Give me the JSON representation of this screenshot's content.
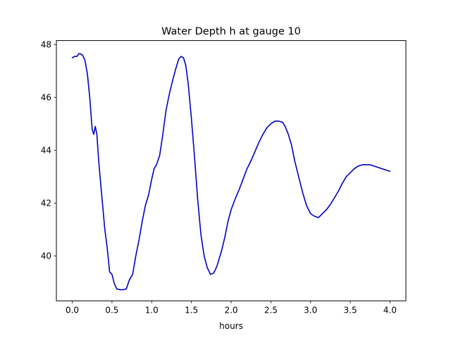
{
  "chart_data": {
    "type": "line",
    "title": "Water Depth h at gauge 10",
    "xlabel": "hours",
    "ylabel": "",
    "xlim": [
      -0.2,
      4.2
    ],
    "ylim": [
      38.3,
      48.15
    ],
    "xticks": [
      0.0,
      0.5,
      1.0,
      1.5,
      2.0,
      2.5,
      3.0,
      3.5,
      4.0
    ],
    "xtick_labels": [
      "0.0",
      "0.5",
      "1.0",
      "1.5",
      "2.0",
      "2.5",
      "3.0",
      "3.5",
      "4.0"
    ],
    "yticks": [
      40,
      42,
      44,
      46,
      48
    ],
    "ytick_labels": [
      "40",
      "42",
      "44",
      "46",
      "48"
    ],
    "grid": false,
    "series": [
      {
        "name": "",
        "color": "#0000cc",
        "x": [
          0.0,
          0.03,
          0.06,
          0.08,
          0.1,
          0.13,
          0.16,
          0.19,
          0.22,
          0.25,
          0.27,
          0.29,
          0.31,
          0.33,
          0.35,
          0.38,
          0.41,
          0.44,
          0.47,
          0.5,
          0.53,
          0.56,
          0.6,
          0.64,
          0.68,
          0.72,
          0.76,
          0.8,
          0.84,
          0.88,
          0.92,
          0.96,
          1.0,
          1.03,
          1.06,
          1.1,
          1.14,
          1.18,
          1.22,
          1.26,
          1.3,
          1.34,
          1.37,
          1.4,
          1.43,
          1.46,
          1.5,
          1.54,
          1.58,
          1.62,
          1.66,
          1.7,
          1.74,
          1.78,
          1.82,
          1.85,
          1.88,
          1.92,
          1.96,
          2.0,
          2.05,
          2.1,
          2.15,
          2.2,
          2.25,
          2.3,
          2.35,
          2.4,
          2.45,
          2.5,
          2.55,
          2.6,
          2.65,
          2.68,
          2.72,
          2.76,
          2.8,
          2.85,
          2.9,
          2.95,
          3.0,
          3.05,
          3.1,
          3.15,
          3.2,
          3.25,
          3.3,
          3.35,
          3.4,
          3.45,
          3.5,
          3.55,
          3.6,
          3.65,
          3.7,
          3.75,
          3.8,
          3.85,
          3.9,
          3.95,
          4.0
        ],
        "y": [
          47.5,
          47.55,
          47.55,
          47.65,
          47.65,
          47.6,
          47.4,
          46.9,
          46.0,
          44.8,
          44.6,
          44.9,
          44.6,
          43.7,
          43.0,
          42.0,
          41.0,
          40.3,
          39.4,
          39.3,
          38.95,
          38.75,
          38.72,
          38.72,
          38.75,
          39.1,
          39.3,
          40.0,
          40.6,
          41.3,
          41.9,
          42.3,
          42.9,
          43.3,
          43.45,
          43.8,
          44.6,
          45.5,
          46.1,
          46.6,
          47.05,
          47.45,
          47.55,
          47.5,
          47.2,
          46.5,
          45.2,
          43.7,
          42.1,
          40.8,
          40.0,
          39.55,
          39.3,
          39.35,
          39.6,
          39.9,
          40.2,
          40.7,
          41.3,
          41.75,
          42.15,
          42.5,
          42.9,
          43.3,
          43.6,
          43.95,
          44.3,
          44.6,
          44.85,
          45.0,
          45.1,
          45.1,
          45.05,
          44.9,
          44.6,
          44.2,
          43.6,
          43.0,
          42.4,
          41.9,
          41.6,
          41.5,
          41.45,
          41.6,
          41.75,
          41.95,
          42.2,
          42.45,
          42.75,
          43.0,
          43.15,
          43.3,
          43.4,
          43.45,
          43.45,
          43.45,
          43.4,
          43.35,
          43.3,
          43.25,
          43.2
        ]
      }
    ]
  }
}
